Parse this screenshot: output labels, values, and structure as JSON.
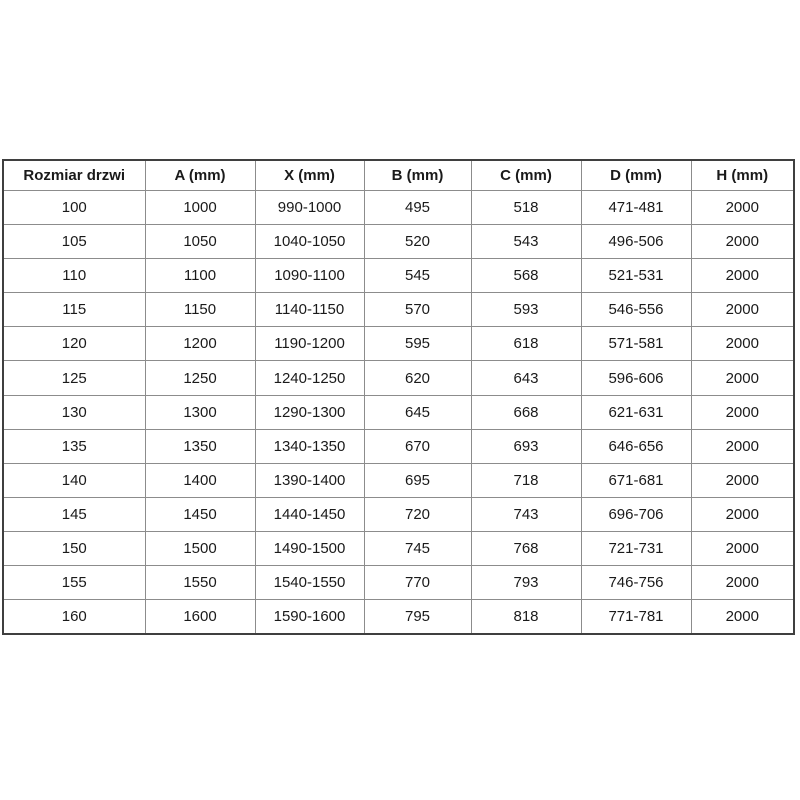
{
  "page": {
    "background_color": "#ffffff",
    "language": "pl"
  },
  "table": {
    "colors": {
      "outer_border": "#3f3f3f",
      "grid_line": "#8c8c8c",
      "text": "#1a1a1a",
      "cell_background": "#ffffff"
    },
    "headers": [
      "Rozmiar drzwi",
      "A (mm)",
      "X (mm)",
      "B (mm)",
      "C (mm)",
      "D (mm)",
      "H (mm)"
    ],
    "rows": [
      [
        "100",
        "1000",
        "990-1000",
        "495",
        "518",
        "471-481",
        "2000"
      ],
      [
        "105",
        "1050",
        "1040-1050",
        "520",
        "543",
        "496-506",
        "2000"
      ],
      [
        "110",
        "1100",
        "1090-1100",
        "545",
        "568",
        "521-531",
        "2000"
      ],
      [
        "115",
        "1150",
        "1140-1150",
        "570",
        "593",
        "546-556",
        "2000"
      ],
      [
        "120",
        "1200",
        "1190-1200",
        "595",
        "618",
        "571-581",
        "2000"
      ],
      [
        "125",
        "1250",
        "1240-1250",
        "620",
        "643",
        "596-606",
        "2000"
      ],
      [
        "130",
        "1300",
        "1290-1300",
        "645",
        "668",
        "621-631",
        "2000"
      ],
      [
        "135",
        "1350",
        "1340-1350",
        "670",
        "693",
        "646-656",
        "2000"
      ],
      [
        "140",
        "1400",
        "1390-1400",
        "695",
        "718",
        "671-681",
        "2000"
      ],
      [
        "145",
        "1450",
        "1440-1450",
        "720",
        "743",
        "696-706",
        "2000"
      ],
      [
        "150",
        "1500",
        "1490-1500",
        "745",
        "768",
        "721-731",
        "2000"
      ],
      [
        "155",
        "1550",
        "1540-1550",
        "770",
        "793",
        "746-756",
        "2000"
      ],
      [
        "160",
        "1600",
        "1590-1600",
        "795",
        "818",
        "771-781",
        "2000"
      ]
    ]
  },
  "chart_data": {
    "type": "table",
    "title": "",
    "columns": [
      "Rozmiar drzwi",
      "A (mm)",
      "X (mm)",
      "B (mm)",
      "C (mm)",
      "D (mm)",
      "H (mm)"
    ],
    "rows": [
      [
        "100",
        "1000",
        "990-1000",
        "495",
        "518",
        "471-481",
        "2000"
      ],
      [
        "105",
        "1050",
        "1040-1050",
        "520",
        "543",
        "496-506",
        "2000"
      ],
      [
        "110",
        "1100",
        "1090-1100",
        "545",
        "568",
        "521-531",
        "2000"
      ],
      [
        "115",
        "1150",
        "1140-1150",
        "570",
        "593",
        "546-556",
        "2000"
      ],
      [
        "120",
        "1200",
        "1190-1200",
        "595",
        "618",
        "571-581",
        "2000"
      ],
      [
        "125",
        "1250",
        "1240-1250",
        "620",
        "643",
        "596-606",
        "2000"
      ],
      [
        "130",
        "1300",
        "1290-1300",
        "645",
        "668",
        "621-631",
        "2000"
      ],
      [
        "135",
        "1350",
        "1340-1350",
        "670",
        "693",
        "646-656",
        "2000"
      ],
      [
        "140",
        "1400",
        "1390-1400",
        "695",
        "718",
        "671-681",
        "2000"
      ],
      [
        "145",
        "1450",
        "1440-1450",
        "720",
        "743",
        "696-706",
        "2000"
      ],
      [
        "150",
        "1500",
        "1490-1500",
        "745",
        "768",
        "721-731",
        "2000"
      ],
      [
        "155",
        "1550",
        "1540-1550",
        "770",
        "793",
        "746-756",
        "2000"
      ],
      [
        "160",
        "1600",
        "1590-1600",
        "795",
        "818",
        "771-781",
        "2000"
      ]
    ]
  }
}
